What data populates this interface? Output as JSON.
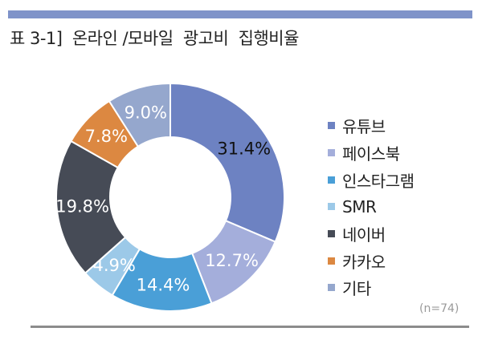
{
  "title": "표 3-1]  온라인 /모바일  광고비  집행비율",
  "note": "(n=74)",
  "chart_data": {
    "type": "pie",
    "variant": "donut",
    "categories": [
      "유튜브",
      "페이스북",
      "인스타그램",
      "SMR",
      "네이버",
      "카카오",
      "기타"
    ],
    "values": [
      31.4,
      12.7,
      14.4,
      4.9,
      19.8,
      7.8,
      9.0
    ],
    "data_labels": [
      "31.4%",
      "12.7%",
      "14.4%",
      "4.9%",
      "19.8%",
      "7.8%",
      "9.0%"
    ],
    "colors": [
      "#6d82c2",
      "#a4aedb",
      "#4a9fd7",
      "#9cc9e8",
      "#464b56",
      "#dc8841",
      "#95a7cd"
    ],
    "label_colors": [
      "#111111",
      "#ffffff",
      "#ffffff",
      "#ffffff",
      "#ffffff",
      "#ffffff",
      "#ffffff"
    ],
    "legend_position": "right"
  }
}
